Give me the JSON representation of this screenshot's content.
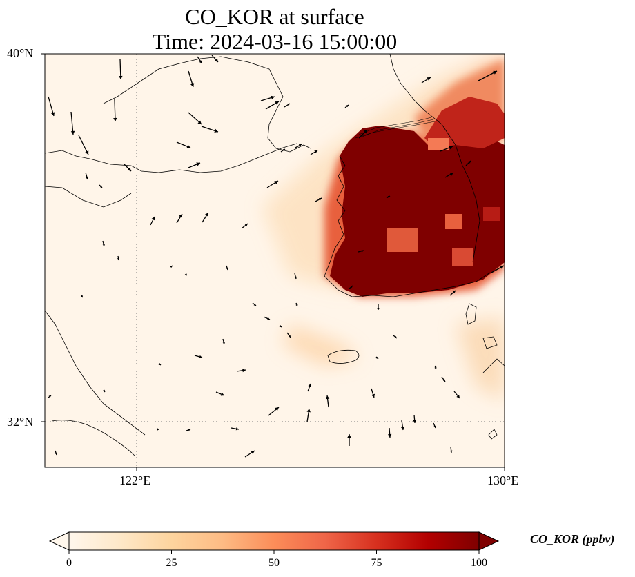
{
  "title": {
    "line1": "CO_KOR at surface",
    "line2": "Time: 2024-03-16 15:00:00"
  },
  "map": {
    "extent": {
      "lon_min": 120,
      "lon_max": 130,
      "lat_min": 31,
      "lat_max": 40
    },
    "lat_ticks": [
      {
        "value": 40,
        "label": "40°N"
      },
      {
        "value": 32,
        "label": "32°N"
      }
    ],
    "lon_ticks": [
      {
        "value": 122,
        "label": "122°E"
      },
      {
        "value": 130,
        "label": "130°E"
      }
    ],
    "gridlines": {
      "lon": 122,
      "lat": 32,
      "style": "dotted"
    },
    "field": "CO_KOR",
    "layers": [
      "CO concentration (shaded)",
      "wind vectors (arrows)",
      "coastlines",
      "country borders"
    ],
    "colormap": "OrRd"
  },
  "colorbar": {
    "label": "CO_KOR (ppbv)",
    "min": 0,
    "max": 100,
    "ticks": [
      {
        "value": 0,
        "label": "0"
      },
      {
        "value": 25,
        "label": "25"
      },
      {
        "value": 50,
        "label": "50"
      },
      {
        "value": 75,
        "label": "75"
      },
      {
        "value": 100,
        "label": "100"
      }
    ],
    "extend": "both",
    "colors": [
      "#fff7ec",
      "#fee8c8",
      "#fdd49e",
      "#fdbb84",
      "#fc8d59",
      "#ef6548",
      "#d7301f",
      "#b30000",
      "#7f0000"
    ]
  }
}
